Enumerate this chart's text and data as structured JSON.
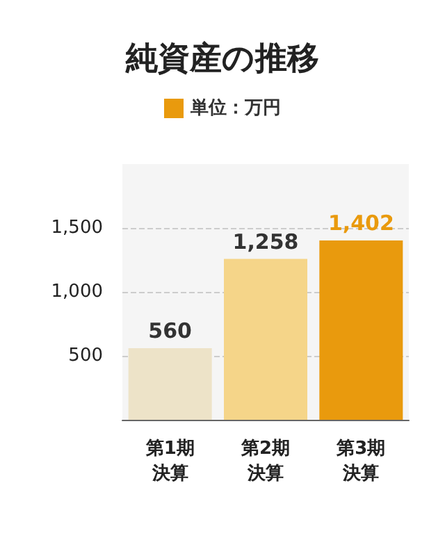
{
  "chart_data": {
    "type": "bar",
    "title": "純資産の推移",
    "categories": [
      "第1期決算",
      "第2期決算",
      "第3期決算"
    ],
    "series": [
      {
        "name": "単位：万円",
        "color": "#e99a0d",
        "colors": [
          "#ede3c8",
          "#f5d589",
          "#e99a0d"
        ],
        "values": [
          560,
          1258,
          1402
        ],
        "value_labels": [
          "560",
          "1,258",
          "1,402"
        ]
      }
    ],
    "ylim": [
      0,
      2000
    ],
    "yticks": [
      {
        "value": 500,
        "label": "500"
      },
      {
        "value": 1000,
        "label": "1,000"
      },
      {
        "value": 1500,
        "label": "1,500"
      }
    ],
    "grid": "y",
    "legend": "top"
  }
}
